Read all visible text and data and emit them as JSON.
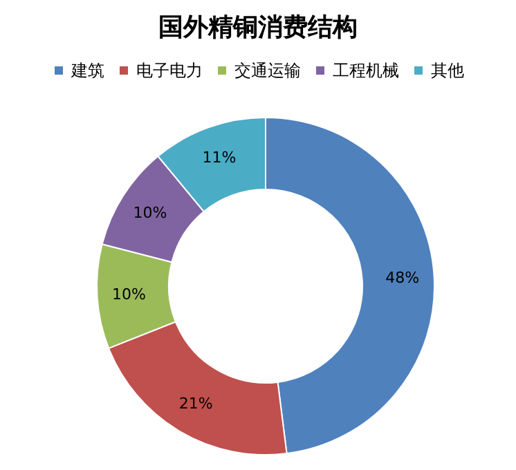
{
  "chart_data": {
    "type": "donut",
    "title": "国外精铜消费结构",
    "categories": [
      "建筑",
      "电子电力",
      "交通运输",
      "工程机械",
      "其他"
    ],
    "values": [
      48,
      21,
      10,
      10,
      11
    ],
    "colors": [
      "#4f81bd",
      "#c0504d",
      "#9bbb59",
      "#8064a2",
      "#4bacc6"
    ],
    "value_labels": [
      "48%",
      "21%",
      "10%",
      "10%",
      "11%"
    ],
    "legend": "top"
  }
}
